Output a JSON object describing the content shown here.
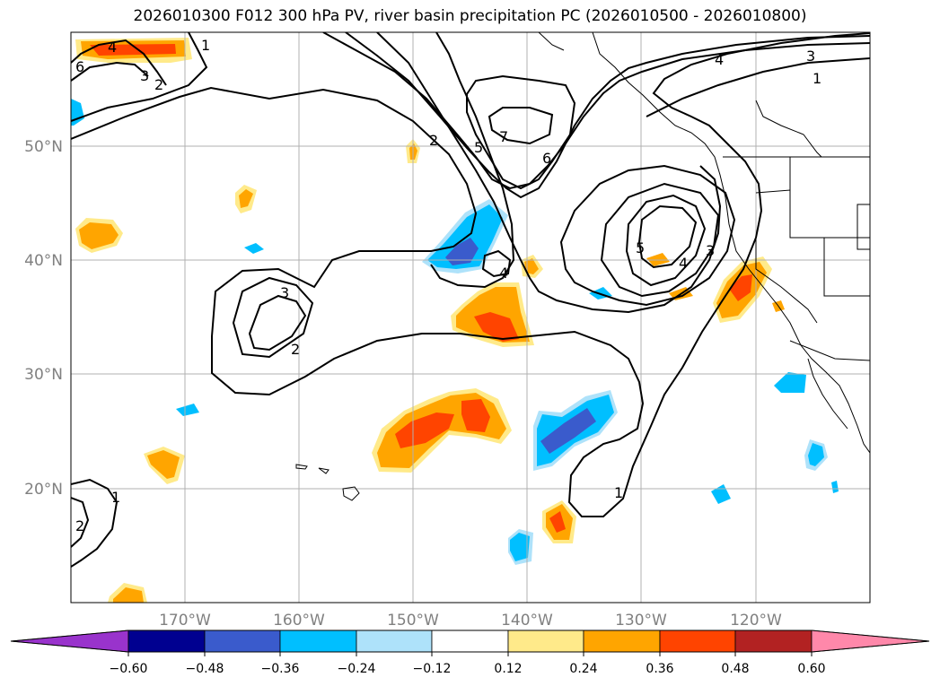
{
  "title": "2026010300 F012 300 hPa PV, river basin precipitation PC (2026010500 - 2026010800)",
  "colors": {
    "label_gray": "#808080",
    "grid": "#b0b0b0",
    "contour": "#000000",
    "colorbar": [
      "#9933cc",
      "#000090",
      "#3a5bcc",
      "#00bfff",
      "#aee2fa",
      "#ffffff",
      "#ffea8a",
      "#ffa500",
      "#ff4400",
      "#b22222",
      "#ff88aa"
    ]
  },
  "lat_labels": [
    "50°N",
    "40°N",
    "30°N",
    "20°N"
  ],
  "lon_labels": [
    "170°W",
    "160°W",
    "150°W",
    "140°W",
    "130°W",
    "120°W"
  ],
  "colorbar_ticks": [
    "−0.60",
    "−0.48",
    "−0.36",
    "−0.24",
    "−0.12",
    "0.12",
    "0.24",
    "0.36",
    "0.48",
    "0.60"
  ],
  "contour_labels": [
    "1",
    "2",
    "3",
    "4",
    "5",
    "6",
    "7"
  ]
}
